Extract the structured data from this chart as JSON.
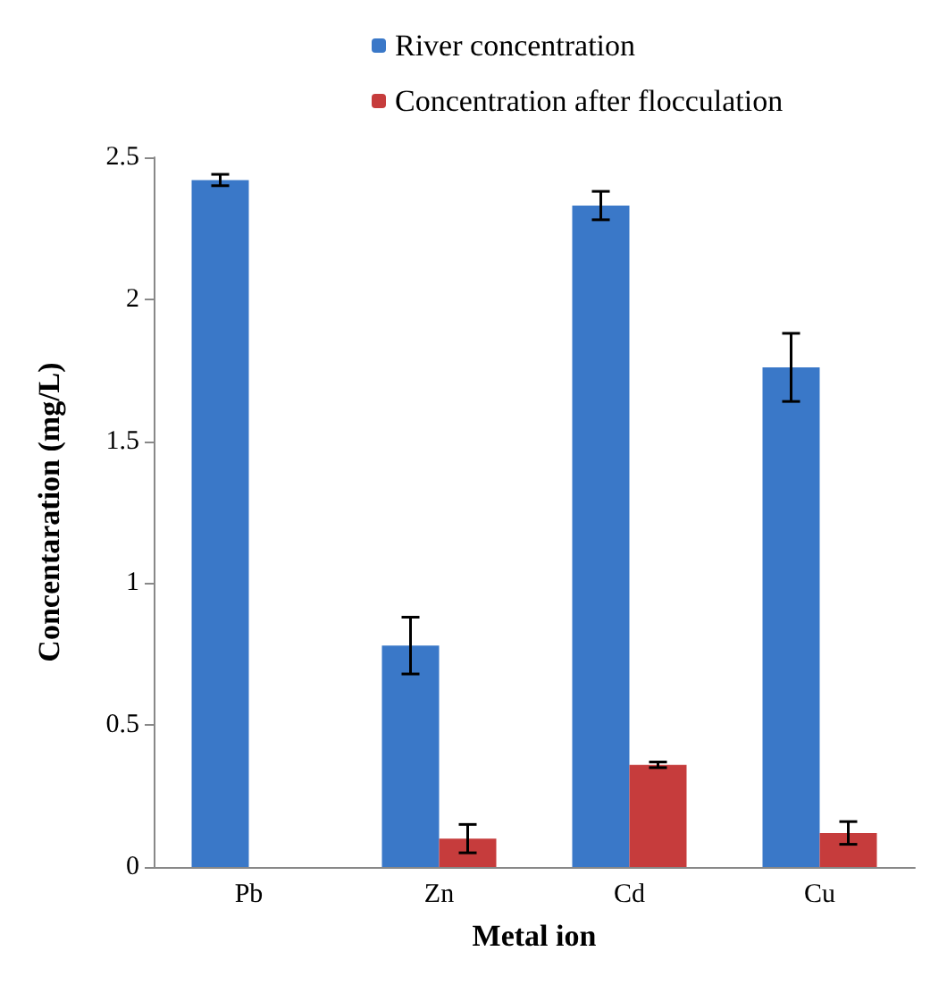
{
  "chart_data": {
    "type": "bar",
    "xlabel": "Metal ion",
    "ylabel": "Concentaration (mg/L)",
    "categories": [
      "Pb",
      "Zn",
      "Cd",
      "Cu"
    ],
    "series": [
      {
        "name": "River concentration",
        "color": "#3a78c8",
        "values": [
          2.42,
          0.78,
          2.33,
          1.76
        ],
        "errors": [
          0.02,
          0.1,
          0.05,
          0.12
        ]
      },
      {
        "name": "Concentration after flocculation",
        "color": "#c63c3c",
        "values": [
          0,
          0.1,
          0.36,
          0.12
        ],
        "errors": [
          null,
          0.05,
          0.01,
          0.04
        ]
      }
    ],
    "ylim": [
      0,
      2.5
    ],
    "yticks": [
      0,
      0.5,
      1,
      1.5,
      2,
      2.5
    ],
    "grid": false,
    "legend": "top"
  }
}
